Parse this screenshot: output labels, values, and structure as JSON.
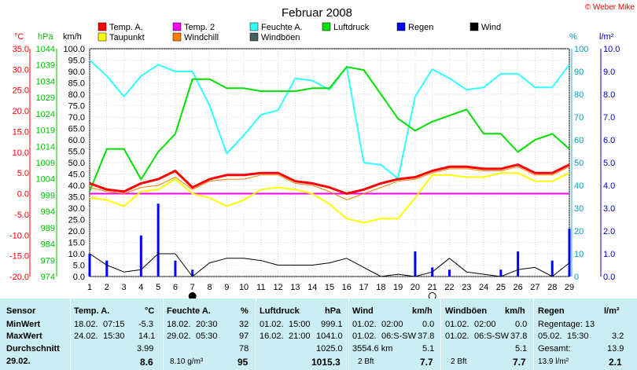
{
  "title": "Februar 2008",
  "copyright": "© Weber Mike",
  "legend": [
    {
      "label": "Temp. A.",
      "color": "#ff0000"
    },
    {
      "label": "Taupunkt",
      "color": "#ffff00"
    },
    {
      "label": "Temp. 2",
      "color": "#ff00ff"
    },
    {
      "label": "Windchill",
      "color": "#ff8000"
    },
    {
      "label": "Feuchte A.",
      "color": "#33ffff"
    },
    {
      "label": "Windböen",
      "color": "#406060"
    },
    {
      "label": "Luftdruck",
      "color": "#00e000"
    },
    {
      "label": "Regen",
      "color": "#0000ff"
    },
    {
      "label": "Wind",
      "color": "#000000"
    }
  ],
  "axis_units": {
    "temp": "°C",
    "pressure": "hPa",
    "wind": "km/h",
    "humidity": "%",
    "rain": "l/m²"
  },
  "chart_data": {
    "type": "line",
    "x": [
      1,
      2,
      3,
      4,
      5,
      6,
      7,
      8,
      9,
      10,
      11,
      12,
      13,
      14,
      15,
      16,
      17,
      18,
      19,
      20,
      21,
      22,
      23,
      24,
      25,
      26,
      27,
      28,
      29
    ],
    "axes": {
      "temp": {
        "unit": "°C",
        "range": [
          -20,
          35
        ],
        "ticks": [
          "35.0",
          "30.0",
          "25.0",
          "20.0",
          "15.0",
          "10.0",
          "5.0",
          "0.0",
          "-5.0",
          "-10.0",
          "-15.0",
          "-20.0"
        ]
      },
      "pressure": {
        "unit": "hPa",
        "range": [
          974,
          1049
        ],
        "ticks": [
          "1044",
          "1039",
          "1034",
          "1029",
          "1024",
          "1019",
          "1014",
          "1009",
          "1004",
          "999",
          "994",
          "989",
          "984",
          "979",
          "974"
        ]
      },
      "wind": {
        "unit": "km/h",
        "range": [
          0,
          100
        ],
        "ticks": [
          "100.0",
          "95.0",
          "90.0",
          "85.0",
          "80.0",
          "75.0",
          "70.0",
          "65.0",
          "60.0",
          "55.0",
          "50.0",
          "45.0",
          "40.0",
          "35.0",
          "30.0",
          "25.0",
          "20.0",
          "15.0",
          "10.0",
          "5.0",
          "0.0"
        ]
      },
      "humidity": {
        "unit": "%",
        "range": [
          0,
          100
        ],
        "ticks": [
          "100",
          "90",
          "80",
          "70",
          "60",
          "50",
          "40",
          "30",
          "20",
          "10",
          "0"
        ]
      },
      "rain": {
        "unit": "l/m²",
        "range": [
          0,
          10
        ],
        "ticks": [
          "10.0",
          "9.0",
          "8.0",
          "7.0",
          "6.0",
          "5.0",
          "4.0",
          "3.0",
          "2.0",
          "1.0",
          "0.0"
        ]
      }
    },
    "series": [
      {
        "name": "Temp. A.",
        "axis": "temp",
        "color": "#ff0000",
        "width": 3,
        "values": [
          2.5,
          1.0,
          0.5,
          2.5,
          3.5,
          5.5,
          1.5,
          3.5,
          4.5,
          4.5,
          5.0,
          5.0,
          3.0,
          2.5,
          1.5,
          0.0,
          1.0,
          2.5,
          3.5,
          4.0,
          5.5,
          6.5,
          6.5,
          6.0,
          6.0,
          7.0,
          5.0,
          5.0,
          7.0
        ]
      },
      {
        "name": "Taupunkt",
        "axis": "temp",
        "color": "#ffff00",
        "width": 2,
        "values": [
          -1.0,
          -1.5,
          -3.0,
          0.5,
          1.0,
          3.5,
          0.0,
          -1.0,
          -3.0,
          -1.5,
          1.0,
          1.5,
          1.0,
          0.0,
          -2.5,
          -6.0,
          -7.0,
          -6.0,
          -6.0,
          -1.0,
          4.5,
          4.5,
          4.0,
          4.0,
          5.0,
          5.0,
          3.0,
          3.0,
          5.0
        ]
      },
      {
        "name": "Windchill",
        "axis": "temp",
        "color": "#ff8000",
        "width": 1,
        "values": [
          1.5,
          0.5,
          0.0,
          1.5,
          2.0,
          4.0,
          1.0,
          3.0,
          3.5,
          3.5,
          4.5,
          4.5,
          2.5,
          2.0,
          0.5,
          -1.5,
          0.0,
          1.5,
          3.0,
          3.5,
          5.0,
          6.0,
          6.0,
          5.5,
          5.5,
          6.5,
          4.5,
          4.5,
          6.5
        ]
      },
      {
        "name": "Temp. 2",
        "axis": "temp",
        "color": "#ff00ff",
        "width": 2,
        "values": [
          0.0,
          0.0,
          0.0,
          0.0,
          0.0,
          0.0,
          0.0,
          0.0,
          0.0,
          0.0,
          0.0,
          0.0,
          0.0,
          0.0,
          0.0,
          0.0,
          0.0,
          0.0,
          0.0,
          0.0,
          0.0,
          0.0,
          0.0,
          0.0,
          0.0,
          0.0,
          0.0,
          0.0,
          0.0
        ]
      },
      {
        "name": "Luftdruck",
        "axis": "pressure",
        "color": "#00e000",
        "width": 2,
        "values": [
          1002,
          1016,
          1016,
          1006,
          1015,
          1021,
          1039,
          1039,
          1036,
          1036,
          1035,
          1035,
          1035,
          1036,
          1036,
          1043,
          1042,
          1034,
          1026,
          1022,
          1025,
          1027,
          1029,
          1021,
          1021,
          1015,
          1019,
          1021,
          1016
        ]
      },
      {
        "name": "Feuchte A.",
        "axis": "humidity",
        "color": "#33ffff",
        "width": 2,
        "values": [
          95,
          88,
          79,
          88,
          93,
          90,
          90,
          75,
          54,
          62,
          71,
          73,
          87,
          86,
          82,
          92,
          50,
          49,
          43,
          79,
          91,
          87,
          82,
          83,
          89,
          89,
          83,
          83,
          93
        ]
      },
      {
        "name": "Wind",
        "axis": "wind",
        "color": "#000000",
        "width": 1,
        "values": [
          10,
          5,
          2,
          3,
          10,
          10,
          0,
          6,
          8,
          8,
          7,
          5,
          5,
          5,
          6,
          8,
          4,
          0,
          1,
          0,
          2,
          8,
          2,
          1,
          0,
          3,
          4,
          0,
          6
        ]
      }
    ],
    "rain": {
      "name": "Regen",
      "axis": "rain",
      "color": "#0000ff",
      "bars": [
        {
          "x": 1,
          "v": 1.0
        },
        {
          "x": 2,
          "v": 0.7
        },
        {
          "x": 4,
          "v": 1.8
        },
        {
          "x": 5,
          "v": 3.2
        },
        {
          "x": 6,
          "v": 0.7
        },
        {
          "x": 7,
          "v": 0.3
        },
        {
          "x": 20,
          "v": 1.1
        },
        {
          "x": 21,
          "v": 0.4
        },
        {
          "x": 22,
          "v": 0.3
        },
        {
          "x": 25,
          "v": 0.3
        },
        {
          "x": 26,
          "v": 1.1
        },
        {
          "x": 28,
          "v": 0.7
        },
        {
          "x": 29,
          "v": 2.1
        }
      ]
    },
    "moon_phases": [
      {
        "x": 7,
        "phase": "new"
      },
      {
        "x": 21,
        "phase": "full"
      }
    ]
  },
  "stats": {
    "sensor": {
      "header": "Sensor",
      "min": "MinWert",
      "max": "MaxWert",
      "avg": "Durchschnitt",
      "date": "29.02."
    },
    "temp": {
      "header": "Temp. A.",
      "unit": "°C",
      "min_date": "18.02.",
      "min_time": "07:15",
      "min_val": "-5.3",
      "max_date": "24.02.",
      "max_time": "15:30",
      "max_val": "14.1",
      "avg": "3.99",
      "today": "8.6"
    },
    "humidity": {
      "header": "Feuchte A.",
      "unit": "%",
      "min_date": "18.02.",
      "min_time": "20:30",
      "min_val": "32",
      "max_date": "29.02.",
      "max_time": "05:30",
      "max_val": "97",
      "avg": "78",
      "extra": "8.10 g/m³",
      "today": "95"
    },
    "pressure": {
      "header": "Luftdruck",
      "unit": "hPa",
      "min_date": "01.02.",
      "min_time": "15:00",
      "min_val": "999.1",
      "max_date": "16.02.",
      "max_time": "21:00",
      "max_val": "1041.0",
      "avg": "1025.0",
      "today": "1015.3"
    },
    "wind": {
      "header": "Wind",
      "unit": "km/h",
      "min_date": "01.02.",
      "min_time": "02:00",
      "min_val": "0.0",
      "max_date": "01.02.",
      "max_time": "06:S-SW",
      "max_val": "37.8",
      "avg_label": "3554.6 km",
      "avg": "5.1",
      "today_label": "2 Bft",
      "today": "7.7"
    },
    "gust": {
      "header": "Windböen",
      "unit": "km/h",
      "min_date": "01.02.",
      "min_time": "02:00",
      "min_val": "0.0",
      "max_date": "01.02.",
      "max_time": "06:S-SW",
      "max_val": "37.8",
      "avg": "5.1",
      "today_label": "2 Bft",
      "today": "7.7"
    },
    "rain": {
      "header": "Regen",
      "unit": "l/m²",
      "min_label": "Regentage: 13",
      "max_date": "05.02.",
      "max_time": "15:30",
      "max_val": "3.2",
      "total_label": "Gesamt:",
      "total": "13.9",
      "today_label": "13.9 l/m²",
      "today": "2.1"
    }
  }
}
